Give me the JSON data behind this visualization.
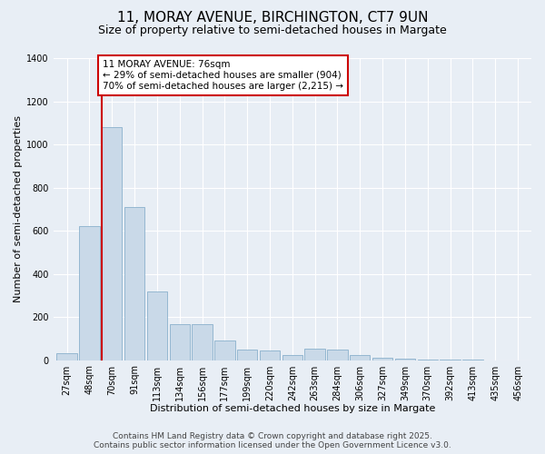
{
  "title_line1": "11, MORAY AVENUE, BIRCHINGTON, CT7 9UN",
  "title_line2": "Size of property relative to semi-detached houses in Margate",
  "xlabel": "Distribution of semi-detached houses by size in Margate",
  "ylabel": "Number of semi-detached properties",
  "categories": [
    "27sqm",
    "48sqm",
    "70sqm",
    "91sqm",
    "113sqm",
    "134sqm",
    "156sqm",
    "177sqm",
    "199sqm",
    "220sqm",
    "242sqm",
    "263sqm",
    "284sqm",
    "306sqm",
    "327sqm",
    "349sqm",
    "370sqm",
    "392sqm",
    "413sqm",
    "435sqm",
    "456sqm"
  ],
  "values": [
    30,
    620,
    1080,
    710,
    320,
    165,
    165,
    90,
    50,
    45,
    25,
    55,
    50,
    25,
    10,
    5,
    3,
    2,
    1,
    0,
    0
  ],
  "bar_color": "#c9d9e8",
  "bar_edge_color": "#8ab0cc",
  "vline_x_index": 2.0,
  "vline_color": "#cc0000",
  "annotation_text": "11 MORAY AVENUE: 76sqm\n← 29% of semi-detached houses are smaller (904)\n70% of semi-detached houses are larger (2,215) →",
  "annotation_box_color": "#ffffff",
  "annotation_box_edge": "#cc0000",
  "ylim": [
    0,
    1400
  ],
  "yticks": [
    0,
    200,
    400,
    600,
    800,
    1000,
    1200,
    1400
  ],
  "bg_color": "#e8eef5",
  "plot_bg_color": "#e8eef5",
  "footer_line1": "Contains HM Land Registry data © Crown copyright and database right 2025.",
  "footer_line2": "Contains public sector information licensed under the Open Government Licence v3.0.",
  "title_fontsize": 11,
  "subtitle_fontsize": 9,
  "axis_label_fontsize": 8,
  "tick_fontsize": 7,
  "annotation_fontsize": 7.5,
  "footer_fontsize": 6.5
}
